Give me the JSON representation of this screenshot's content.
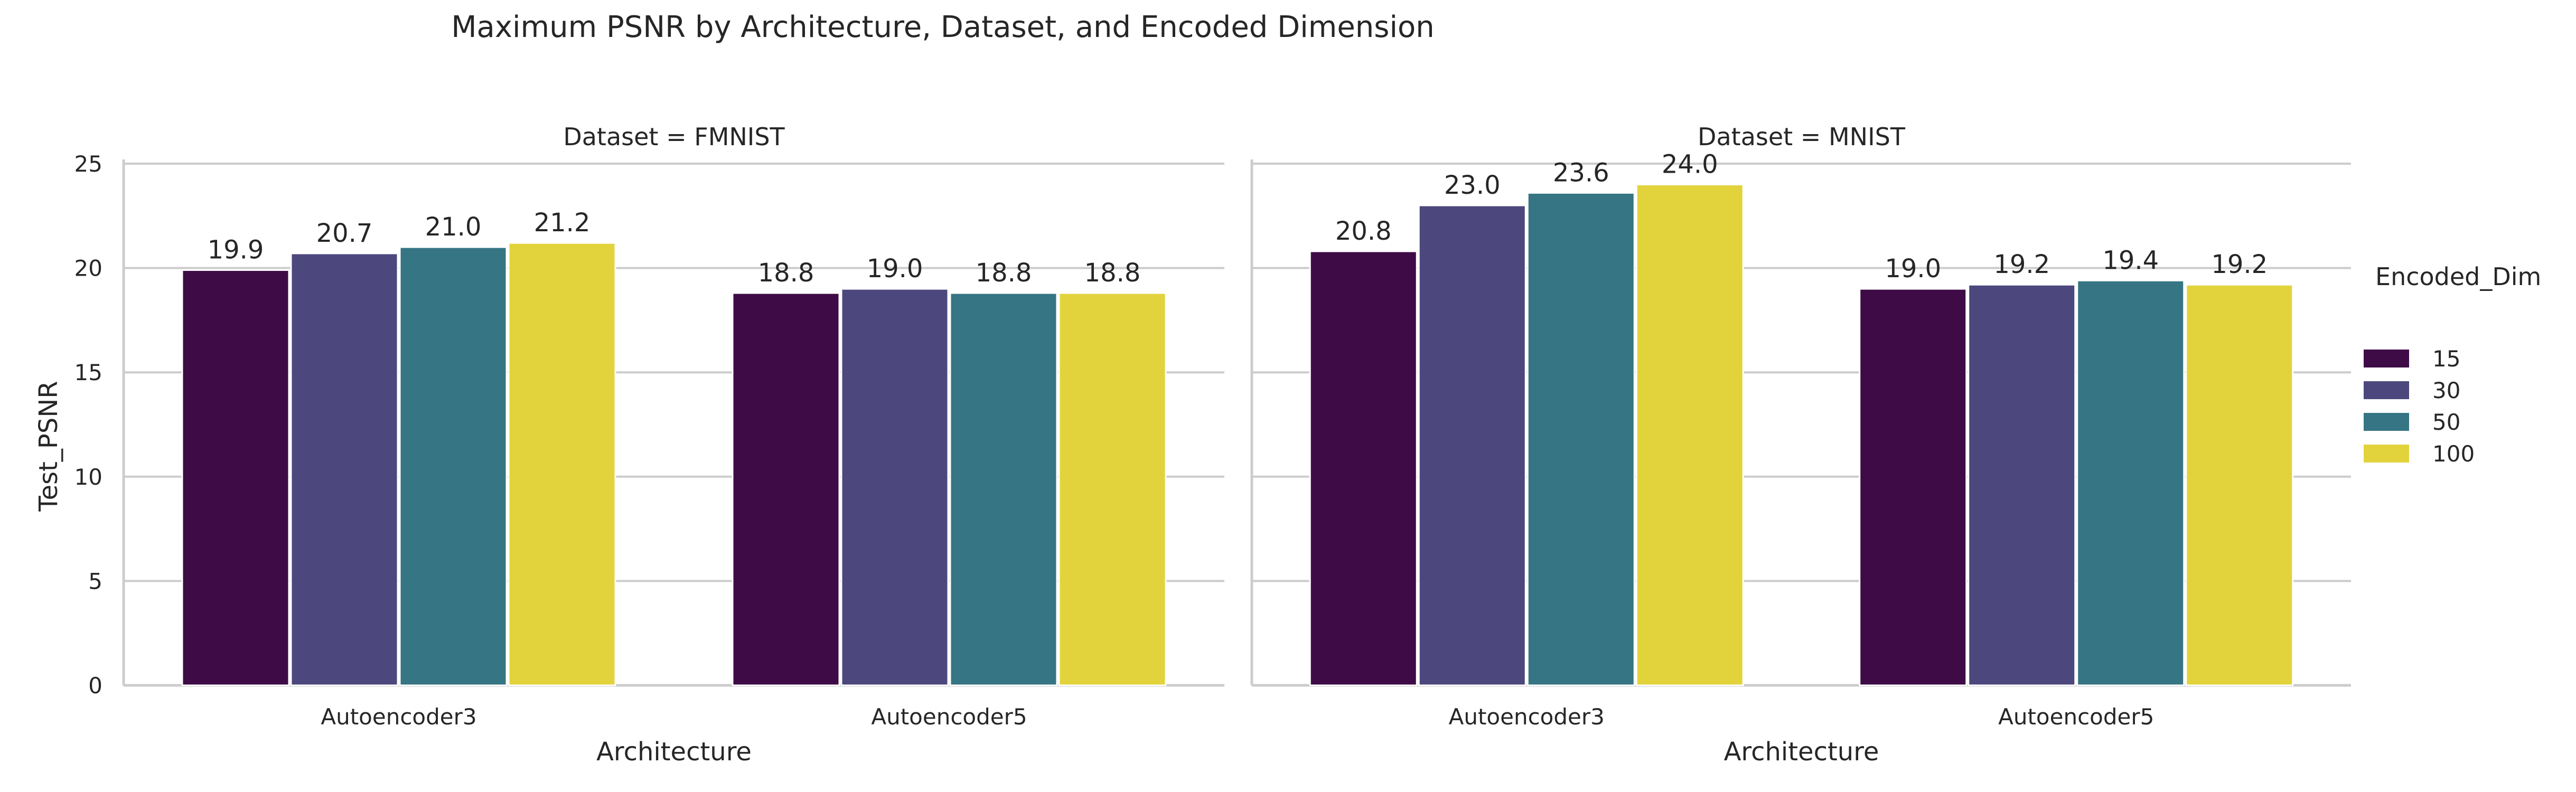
{
  "chart_data": {
    "type": "bar",
    "title": "Maximum PSNR by Architecture, Dataset, and Encoded Dimension",
    "xlabel": "Architecture",
    "ylabel": "Test_PSNR",
    "ylim": [
      0,
      25
    ],
    "yticks": [
      "0",
      "5",
      "10",
      "15",
      "20",
      "25"
    ],
    "grid": "horizontal",
    "legend": {
      "title": "Encoded_Dim",
      "placement": "right",
      "entries": [
        "15",
        "30",
        "50",
        "100"
      ]
    },
    "colors": [
      "#3e0b47",
      "#4c487d",
      "#367583",
      "#e2d33c"
    ],
    "panels": [
      {
        "title": "Dataset = FMNIST",
        "categories": [
          "Autoencoder3",
          "Autoencoder5"
        ],
        "series": [
          {
            "name": "15",
            "values": [
              19.9,
              18.8
            ],
            "labels": [
              "19.9",
              "18.8"
            ]
          },
          {
            "name": "30",
            "values": [
              20.7,
              19.0
            ],
            "labels": [
              "20.7",
              "19.0"
            ]
          },
          {
            "name": "50",
            "values": [
              21.0,
              18.8
            ],
            "labels": [
              "21.0",
              "18.8"
            ]
          },
          {
            "name": "100",
            "values": [
              21.2,
              18.8
            ],
            "labels": [
              "21.2",
              "18.8"
            ]
          }
        ]
      },
      {
        "title": "Dataset = MNIST",
        "categories": [
          "Autoencoder3",
          "Autoencoder5"
        ],
        "series": [
          {
            "name": "15",
            "values": [
              20.8,
              19.0
            ],
            "labels": [
              "20.8",
              "19.0"
            ]
          },
          {
            "name": "30",
            "values": [
              23.0,
              19.2
            ],
            "labels": [
              "23.0",
              "19.2"
            ]
          },
          {
            "name": "50",
            "values": [
              23.6,
              19.4
            ],
            "labels": [
              "23.6",
              "19.4"
            ]
          },
          {
            "name": "100",
            "values": [
              24.0,
              19.2
            ],
            "labels": [
              "24.0",
              "19.2"
            ]
          }
        ]
      }
    ]
  }
}
